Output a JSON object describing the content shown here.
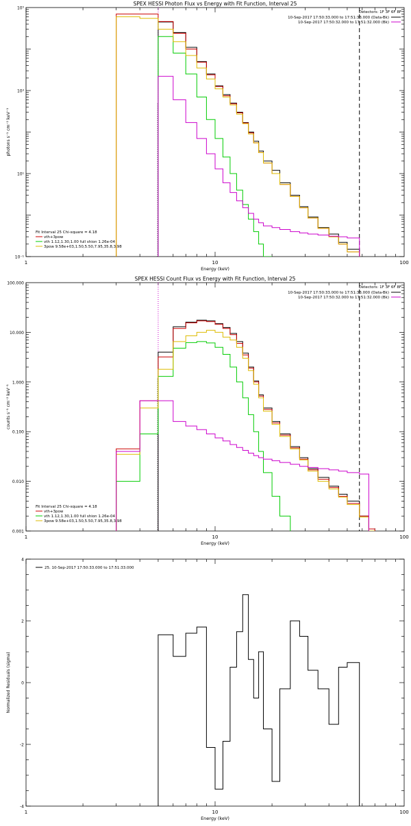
{
  "chart_data": [
    {
      "type": "line",
      "title": "SPEX HESSI Photon Flux vs Energy with Fit Function, Interval 25",
      "xlabel": "Energy (keV)",
      "ylabel": "photons s⁻¹ cm⁻² keV⁻¹",
      "xscale": "log",
      "yscale": "log",
      "xlim": [
        1,
        100
      ],
      "ylim": [
        0.1,
        100000
      ],
      "xticks": [
        {
          "v": 1,
          "label": "1"
        },
        {
          "v": 10,
          "label": "10"
        },
        {
          "v": 100,
          "label": "100"
        }
      ],
      "yticks": [
        {
          "v": 0.1,
          "label": "10⁻¹"
        },
        {
          "v": 10,
          "label": "10¹"
        },
        {
          "v": 1000,
          "label": "10³"
        },
        {
          "v": 100000,
          "label": "10⁵"
        }
      ],
      "vlines": [
        {
          "x": 5.0,
          "style": "dotted",
          "color": "#cc00cc"
        },
        {
          "x": 58,
          "style": "dashed",
          "color": "#000000"
        }
      ],
      "legend_top_lines": [
        "Detectors: 1F 3F 6F 8F"
      ],
      "legend_top": [
        {
          "label": "10-Sep-2017 17:50:33.000 to 17:51:33.000 (Data-Bk)",
          "color": "#000000"
        },
        {
          "label": "10-Sep-2017 17:50:32.000 to 17:51:32.000 (Bk)",
          "color": "#cc00cc"
        }
      ],
      "legend_bottom_header": "Fit Interval 25   Chi-square = 4.18",
      "legend_bottom": [
        {
          "label": "vth+3pow",
          "color": "#cc0000"
        },
        {
          "label": "vth 1.12,1.30,1.00  full shion 1.26e-04",
          "color": "#00cc00"
        },
        {
          "label": "3pow 9.58e+03,1.50,5.50,7.95,35.8,3.98",
          "color": "#ddbb00"
        }
      ],
      "edges": [
        3.0,
        4.0,
        5.0,
        6.0,
        7.0,
        8.0,
        9.0,
        10.0,
        11.0,
        12.0,
        13.0,
        14.0,
        15.0,
        16.0,
        17.0,
        18.0,
        20.0,
        22.0,
        25.0,
        28.0,
        31.0,
        35.0,
        40.0,
        45.0,
        50.0,
        58.0,
        65.0,
        70.0
      ],
      "series": [
        {
          "name": "data",
          "color": "#000000",
          "values": [
            null,
            null,
            45000,
            25000,
            11000,
            5000,
            2500,
            1300,
            800,
            500,
            300,
            170,
            100,
            60,
            35,
            20,
            12,
            6,
            3,
            1.6,
            0.9,
            0.5,
            0.35,
            0.22,
            0.15,
            null,
            null
          ]
        },
        {
          "name": "vth+3pow",
          "color": "#cc0000",
          "values": [
            70000,
            70000,
            46000,
            24000,
            10000,
            4800,
            2400,
            1250,
            750,
            480,
            290,
            165,
            95,
            55,
            32,
            18,
            10,
            5.5,
            2.8,
            1.5,
            0.85,
            0.48,
            0.3,
            0.2,
            0.13,
            null,
            null
          ]
        },
        {
          "name": "vth",
          "color": "#00cc00",
          "values": [
            null,
            null,
            20000,
            8000,
            2500,
            700,
            200,
            70,
            25,
            10,
            4,
            1.8,
            0.8,
            0.4,
            0.2,
            0.1,
            null,
            null,
            null,
            null,
            null,
            null,
            null,
            null,
            null,
            null,
            null
          ]
        },
        {
          "name": "3pow",
          "color": "#ddbb00",
          "values": [
            60000,
            55000,
            30000,
            15000,
            7000,
            3500,
            1900,
            1100,
            700,
            450,
            270,
            160,
            90,
            55,
            32,
            18,
            10,
            5.5,
            2.8,
            1.5,
            0.85,
            0.48,
            0.3,
            0.2,
            0.13,
            null,
            null
          ]
        },
        {
          "name": "Bk",
          "color": "#cc00cc",
          "values": [
            null,
            null,
            2200,
            600,
            170,
            70,
            30,
            13,
            6,
            3.5,
            2.2,
            1.5,
            1.1,
            0.8,
            0.65,
            0.55,
            0.5,
            0.45,
            0.4,
            0.37,
            0.35,
            0.33,
            0.31,
            0.3,
            0.28,
            null,
            null
          ]
        }
      ]
    },
    {
      "type": "line",
      "title": "SPEX HESSI Count Flux vs Energy with Fit Function, Interval 25",
      "xlabel": "Energy (keV)",
      "ylabel": "counts s⁻¹ cm⁻² keV⁻¹",
      "xscale": "log",
      "yscale": "log",
      "xlim": [
        1,
        100
      ],
      "ylim": [
        0.001,
        100
      ],
      "xticks": [
        {
          "v": 1,
          "label": "1"
        },
        {
          "v": 10,
          "label": "10"
        },
        {
          "v": 100,
          "label": "100"
        }
      ],
      "yticks": [
        {
          "v": 0.001,
          "label": "0.001"
        },
        {
          "v": 0.01,
          "label": "0.010"
        },
        {
          "v": 0.1,
          "label": "0.100"
        },
        {
          "v": 1,
          "label": "1.000"
        },
        {
          "v": 10,
          "label": "10.000"
        },
        {
          "v": 100,
          "label": "100.000"
        }
      ],
      "vlines": [
        {
          "x": 5.0,
          "style": "dotted",
          "color": "#cc00cc"
        },
        {
          "x": 58,
          "style": "dashed",
          "color": "#000000"
        }
      ],
      "legend_top_lines": [
        "Detectors: 1F 3F 6F 8F"
      ],
      "legend_top": [
        {
          "label": "10-Sep-2017 17:50:33.000 to 17:51:33.000 (Data-Bk)",
          "color": "#000000"
        },
        {
          "label": "10-Sep-2017 17:50:32.000 to 17:51:32.000 (Bk)",
          "color": "#cc00cc"
        }
      ],
      "legend_bottom_header": "Fit Interval 25   Chi-square = 4.18",
      "legend_bottom": [
        {
          "label": "vth+3pow",
          "color": "#cc0000"
        },
        {
          "label": "vth 1.12,1.30,1.00  full shion 1.26e-04",
          "color": "#00cc00"
        },
        {
          "label": "3pow 9.58e+03,1.50,5.50,7.95,35.8,3.98",
          "color": "#ddbb00"
        }
      ],
      "edges": [
        3.0,
        4.0,
        5.0,
        6.0,
        7.0,
        8.0,
        9.0,
        10.0,
        11.0,
        12.0,
        13.0,
        14.0,
        15.0,
        16.0,
        17.0,
        18.0,
        20.0,
        22.0,
        25.0,
        28.0,
        31.0,
        35.0,
        40.0,
        45.0,
        50.0,
        58.0,
        65.0,
        70.0
      ],
      "series": [
        {
          "name": "data",
          "color": "#000000",
          "values": [
            null,
            null,
            4.0,
            13,
            16,
            17.5,
            17,
            15,
            12.5,
            9.5,
            6.5,
            3.8,
            2.0,
            1.05,
            0.55,
            0.3,
            0.16,
            0.09,
            0.05,
            0.03,
            0.018,
            0.012,
            0.008,
            0.0055,
            0.004,
            0.002,
            null
          ]
        },
        {
          "name": "vth+3pow",
          "color": "#cc0000",
          "values": [
            0.045,
            0.42,
            3.2,
            12,
            15.5,
            17,
            16.5,
            14.5,
            12,
            9,
            6,
            3.5,
            1.9,
            1.0,
            0.52,
            0.28,
            0.15,
            0.085,
            0.047,
            0.028,
            0.017,
            0.011,
            0.0075,
            0.005,
            0.0036,
            0.002,
            0.0011
          ]
        },
        {
          "name": "vth",
          "color": "#00cc00",
          "values": [
            0.01,
            0.09,
            1.3,
            4.8,
            6.2,
            6.5,
            6.1,
            5.0,
            3.6,
            2.0,
            1.0,
            0.48,
            0.22,
            0.1,
            0.04,
            0.015,
            0.005,
            0.002,
            null,
            null,
            null,
            null,
            null,
            null,
            null,
            null,
            null
          ]
        },
        {
          "name": "3pow",
          "color": "#ddbb00",
          "values": [
            0.035,
            0.3,
            1.8,
            6.5,
            8.5,
            10,
            11,
            10,
            8,
            7,
            5.0,
            3.0,
            1.7,
            0.9,
            0.48,
            0.26,
            0.14,
            0.08,
            0.045,
            0.027,
            0.016,
            0.01,
            0.007,
            0.0048,
            0.0034,
            0.0019,
            0.001
          ]
        },
        {
          "name": "Bk",
          "color": "#cc00cc",
          "values": [
            0.04,
            0.42,
            0.42,
            0.16,
            0.13,
            0.11,
            0.09,
            0.075,
            0.065,
            0.055,
            0.048,
            0.042,
            0.037,
            0.033,
            0.03,
            0.028,
            0.026,
            0.024,
            0.022,
            0.02,
            0.019,
            0.018,
            0.017,
            0.016,
            0.015,
            0.014,
            null
          ]
        }
      ]
    },
    {
      "type": "line",
      "title": "",
      "xlabel": "Energy (keV)",
      "ylabel": "Normalized Residuals (sigma)",
      "xscale": "log",
      "yscale": "linear",
      "xlim": [
        1,
        100
      ],
      "ylim": [
        -4,
        4
      ],
      "xticks": [
        {
          "v": 1,
          "label": "1"
        },
        {
          "v": 10,
          "label": "10"
        },
        {
          "v": 100,
          "label": "100"
        }
      ],
      "yticks": [
        {
          "v": -4,
          "label": "-4"
        },
        {
          "v": -2,
          "label": "-2"
        },
        {
          "v": 0,
          "label": "0"
        },
        {
          "v": 2,
          "label": "2"
        },
        {
          "v": 4,
          "label": "4"
        }
      ],
      "legend_top_left": "25. 10-Sep-2017 17:50:33.000 to 17:51:33.000",
      "edges": [
        5.0,
        6.0,
        7.0,
        8.0,
        9.0,
        10.0,
        11.0,
        12.0,
        13.0,
        14.0,
        15.0,
        16.0,
        17.0,
        18.0,
        20.0,
        22.0,
        25.0,
        28.0,
        31.0,
        35.0,
        40.0,
        45.0,
        50.0,
        58.0
      ],
      "series": [
        {
          "name": "residuals",
          "color": "#000000",
          "values": [
            1.55,
            0.85,
            1.6,
            1.8,
            -2.1,
            -3.45,
            -1.9,
            0.5,
            1.65,
            2.85,
            0.75,
            -0.5,
            1.0,
            -1.5,
            -3.2,
            -0.2,
            2.0,
            1.5,
            0.4,
            -0.2,
            -1.35,
            0.5,
            0.65
          ]
        }
      ]
    }
  ]
}
